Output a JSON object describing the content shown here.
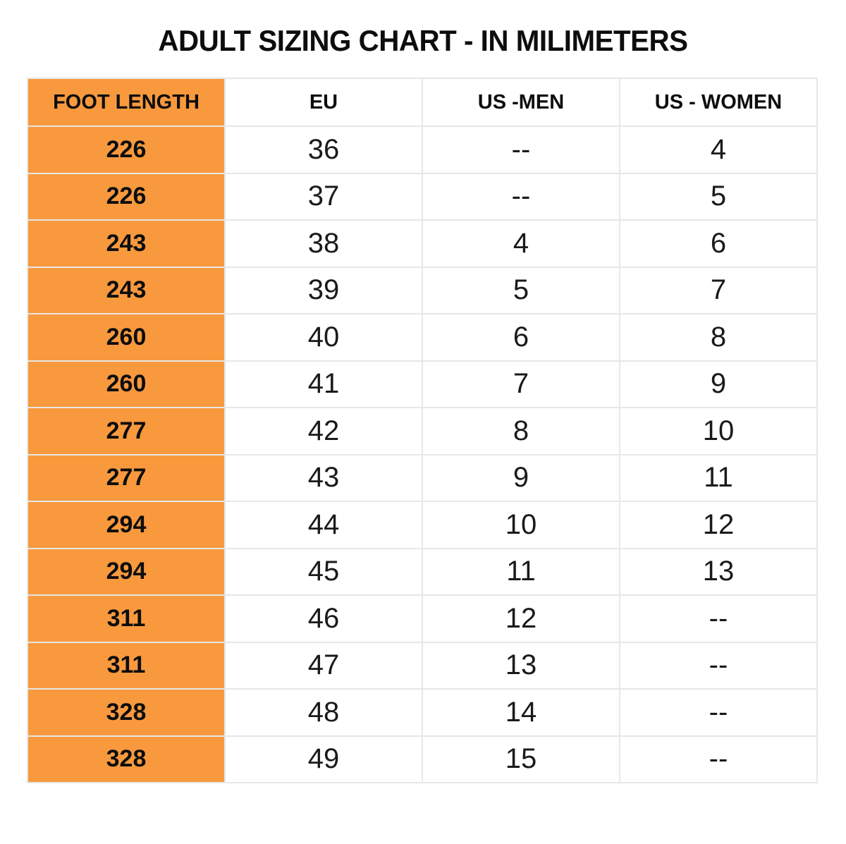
{
  "chart_data": {
    "type": "table",
    "title": "ADULT SIZING CHART - IN MILIMETERS",
    "columns": [
      "FOOT LENGTH",
      "EU",
      "US -MEN",
      "US - WOMEN"
    ],
    "rows": [
      [
        "226",
        "36",
        "--",
        "4"
      ],
      [
        "226",
        "37",
        "--",
        "5"
      ],
      [
        "243",
        "38",
        "4",
        "6"
      ],
      [
        "243",
        "39",
        "5",
        "7"
      ],
      [
        "260",
        "40",
        "6",
        "8"
      ],
      [
        "260",
        "41",
        "7",
        "9"
      ],
      [
        "277",
        "42",
        "8",
        "10"
      ],
      [
        "277",
        "43",
        "9",
        "11"
      ],
      [
        "294",
        "44",
        "10",
        "12"
      ],
      [
        "294",
        "45",
        "11",
        "13"
      ],
      [
        "311",
        "46",
        "12",
        "--"
      ],
      [
        "311",
        "47",
        "13",
        "--"
      ],
      [
        "328",
        "48",
        "14",
        "--"
      ],
      [
        "328",
        "49",
        "15",
        "--"
      ]
    ],
    "notes": {
      "foot_length_unit": "millimeters",
      "first_column_highlight": true
    }
  },
  "colors": {
    "accent_orange": "#f8993e",
    "grid_gray": "#e7e7e7",
    "text_black": "#111111",
    "background": "#ffffff"
  }
}
